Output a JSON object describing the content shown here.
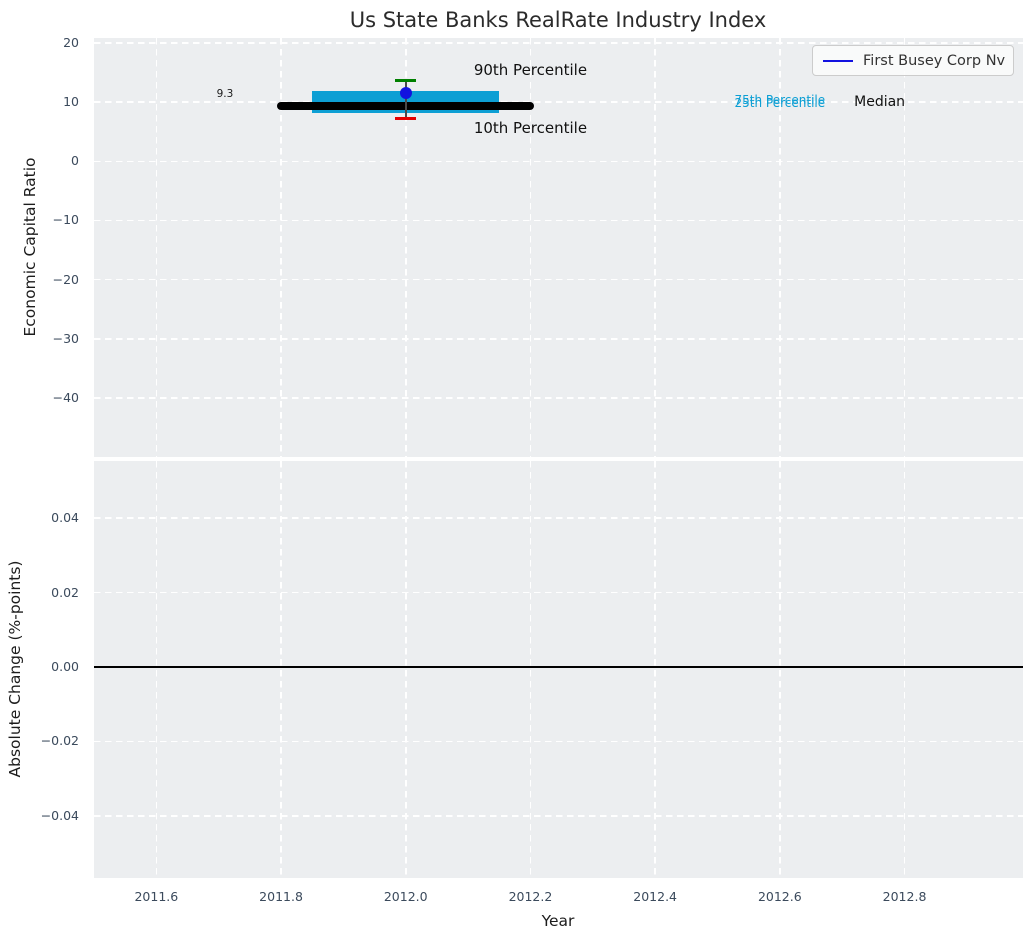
{
  "chart_data": {
    "type": "scatter",
    "title": "Us State Banks RealRate Industry Index",
    "xlabel": "Year",
    "legend": {
      "label": "First Busey Corp Nv",
      "line_color": "#1212e0",
      "location": "upper right"
    },
    "style": {
      "plot_bg": "#eceef0",
      "grid_color": "#ffffff",
      "tick_color": "#3b4a5c",
      "band_color": "#0d9fd4",
      "company_color": "#1212e0",
      "p90_color": "#008000",
      "p10_color": "#e60000",
      "median_color": "#000000"
    },
    "panels": [
      {
        "name": "economic_capital_ratio",
        "ylabel": "Economic Capital Ratio",
        "xlim": [
          2011.5,
          2012.99
        ],
        "ylim": [
          -50.0,
          20.85
        ],
        "show_x_tick_labels": false,
        "x_ticks": [
          {
            "value": 2011.6,
            "label": "2011.6"
          },
          {
            "value": 2011.8,
            "label": "2011.8"
          },
          {
            "value": 2012.0,
            "label": "2012.0"
          },
          {
            "value": 2012.2,
            "label": "2012.2"
          },
          {
            "value": 2012.4,
            "label": "2012.4"
          },
          {
            "value": 2012.6,
            "label": "2012.6"
          },
          {
            "value": 2012.8,
            "label": "2012.8"
          }
        ],
        "y_ticks": [
          {
            "value": 20,
            "label": "20"
          },
          {
            "value": 10,
            "label": "10"
          },
          {
            "value": 0,
            "label": "0"
          },
          {
            "value": -10,
            "label": "−10"
          },
          {
            "value": -20,
            "label": "−20"
          },
          {
            "value": -30,
            "label": "−30"
          },
          {
            "value": -40,
            "label": "−40"
          }
        ],
        "series": {
          "company_point": {
            "name": "First Busey Corp Nv",
            "x": 2012.0,
            "y": 11.5,
            "color": "#1212e0"
          },
          "percentile_90": {
            "y": 13.6,
            "color": "#008000",
            "label": "90th Percentile"
          },
          "percentile_10": {
            "y": 7.3,
            "color": "#e60000",
            "label": "10th Percentile"
          },
          "median_line": {
            "y": 9.3,
            "x_start": 2011.8,
            "x_end": 2012.2,
            "color": "#000000",
            "label": "Median",
            "value_label": "9.3"
          },
          "iqr_band": {
            "p75": 11.9,
            "p25": 8.2,
            "x_start": 2011.85,
            "x_end": 2012.15,
            "color": "#0d9fd4",
            "labels": [
              "75th Percentile",
              "25th Percentile"
            ]
          }
        },
        "annotations": [
          {
            "text": "9.3",
            "x": 2011.71,
            "y": 11.4,
            "size": 10.5,
            "color": "#1a1a1a"
          },
          {
            "text": "90th Percentile",
            "x": 2012.2,
            "y": 15.4,
            "size": 15,
            "color": "#111111"
          },
          {
            "text": "10th Percentile",
            "x": 2012.2,
            "y": 5.6,
            "size": 15,
            "color": "#111111"
          },
          {
            "text": "75th Percentile",
            "x": 2012.6,
            "y": 10.4,
            "size": 12,
            "color": "#0d9fd4"
          },
          {
            "text": "25th Percentile",
            "x": 2012.6,
            "y": 9.8,
            "size": 12,
            "color": "#0d9fd4"
          },
          {
            "text": "Median",
            "x": 2012.76,
            "y": 10.0,
            "size": 14,
            "color": "#111111"
          }
        ]
      },
      {
        "name": "absolute_change",
        "ylabel": "Absolute Change (%-points)",
        "xlim": [
          2011.5,
          2012.99
        ],
        "ylim": [
          -0.0567,
          0.0554
        ],
        "show_x_tick_labels": true,
        "x_ticks": [
          {
            "value": 2011.6,
            "label": "2011.6"
          },
          {
            "value": 2011.8,
            "label": "2011.8"
          },
          {
            "value": 2012.0,
            "label": "2012.0"
          },
          {
            "value": 2012.2,
            "label": "2012.2"
          },
          {
            "value": 2012.4,
            "label": "2012.4"
          },
          {
            "value": 2012.6,
            "label": "2012.6"
          },
          {
            "value": 2012.8,
            "label": "2012.8"
          }
        ],
        "y_ticks": [
          {
            "value": 0.04,
            "label": "0.04"
          },
          {
            "value": 0.02,
            "label": "0.02"
          },
          {
            "value": 0.0,
            "label": "0.00"
          },
          {
            "value": -0.02,
            "label": "−0.02"
          },
          {
            "value": -0.04,
            "label": "−0.04"
          }
        ],
        "zero_line": {
          "y": 0.0,
          "color": "#000000"
        },
        "annotations": []
      }
    ]
  }
}
